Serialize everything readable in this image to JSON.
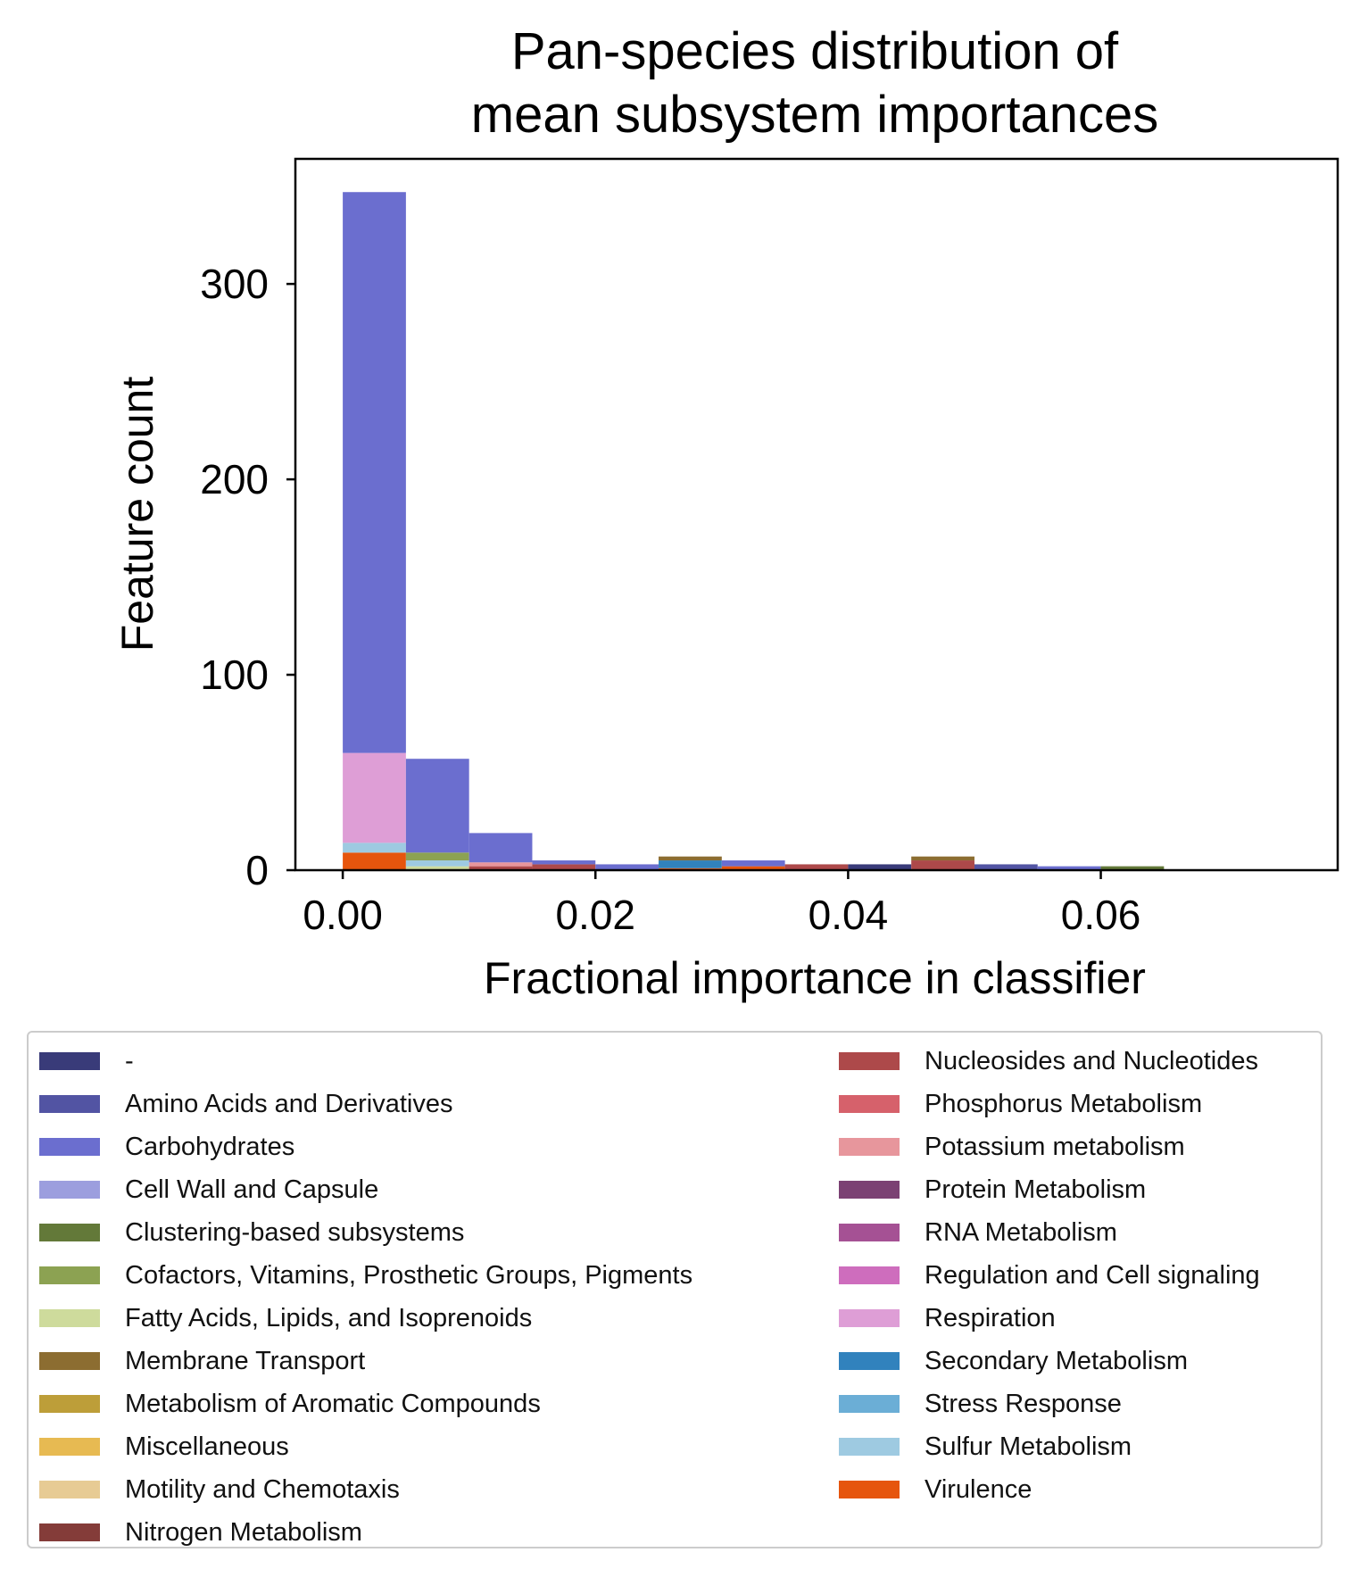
{
  "chart_data": {
    "type": "bar",
    "subtype": "stacked-histogram",
    "title_lines": [
      "Pan-species distribution of",
      "mean subsystem importances"
    ],
    "xlabel": "Fractional importance in classifier",
    "ylabel": "Feature count",
    "xlim": [
      -0.00375,
      0.07875
    ],
    "ylim": [
      0,
      364
    ],
    "xticks": [
      0.0,
      0.02,
      0.04,
      0.06
    ],
    "xtick_labels": [
      "0.00",
      "0.02",
      "0.04",
      "0.06"
    ],
    "yticks": [
      0,
      100,
      200,
      300
    ],
    "ytick_labels": [
      "0",
      "100",
      "200",
      "300"
    ],
    "bin_width": 0.005,
    "grid": false,
    "legend_position": "below",
    "legend_columns": 2,
    "categories": [
      "-",
      "Amino Acids and Derivatives",
      "Carbohydrates",
      "Cell Wall and Capsule",
      "Clustering-based subsystems",
      "Cofactors, Vitamins, Prosthetic Groups, Pigments",
      "Fatty Acids, Lipids, and Isoprenoids",
      "Membrane Transport",
      "Metabolism of Aromatic Compounds",
      "Miscellaneous",
      "Motility and Chemotaxis",
      "Nitrogen Metabolism",
      "Nucleosides and Nucleotides",
      "Phosphorus Metabolism",
      "Potassium metabolism",
      "Protein Metabolism",
      "RNA Metabolism",
      "Regulation and Cell signaling",
      "Respiration",
      "Secondary Metabolism",
      "Stress Response",
      "Sulfur Metabolism",
      "Virulence"
    ],
    "colors": [
      "#393b79",
      "#5254a3",
      "#6b6ecf",
      "#9c9ede",
      "#637939",
      "#8ca252",
      "#cedb9c",
      "#8c6d31",
      "#bd9e39",
      "#e7ba52",
      "#e7cb94",
      "#843c39",
      "#ad494a",
      "#d6616b",
      "#e7969c",
      "#7b4173",
      "#a55194",
      "#ce6dbd",
      "#de9ed6",
      "#3182bd",
      "#6baed6",
      "#9ecae1",
      "#e6550d"
    ],
    "stacks": [
      {
        "bin": [
          0.0,
          0.005
        ],
        "segments": [
          {
            "category": "Virulence",
            "to": 9
          },
          {
            "category": "Sulfur Metabolism",
            "to": 14
          },
          {
            "category": "Respiration",
            "to": 60
          },
          {
            "category": "Carbohydrates",
            "to": 347
          }
        ]
      },
      {
        "bin": [
          0.005,
          0.01
        ],
        "segments": [
          {
            "category": "Fatty Acids, Lipids, and Isoprenoids",
            "to": 2
          },
          {
            "category": "Sulfur Metabolism",
            "to": 5
          },
          {
            "category": "Cofactors, Vitamins, Prosthetic Groups, Pigments",
            "to": 9
          },
          {
            "category": "Carbohydrates",
            "to": 57
          }
        ]
      },
      {
        "bin": [
          0.01,
          0.015
        ],
        "segments": [
          {
            "category": "Nucleosides and Nucleotides",
            "to": 2
          },
          {
            "category": "Potassium metabolism",
            "to": 4
          },
          {
            "category": "Carbohydrates",
            "to": 19
          }
        ]
      },
      {
        "bin": [
          0.015,
          0.02
        ],
        "segments": [
          {
            "category": "Nucleosides and Nucleotides",
            "to": 3
          },
          {
            "category": "Carbohydrates",
            "to": 5
          }
        ]
      },
      {
        "bin": [
          0.02,
          0.025
        ],
        "segments": [
          {
            "category": "Carbohydrates",
            "to": 3
          }
        ]
      },
      {
        "bin": [
          0.025,
          0.03
        ],
        "segments": [
          {
            "category": "Virulence",
            "to": 1
          },
          {
            "category": "Secondary Metabolism",
            "to": 5
          },
          {
            "category": "Membrane Transport",
            "to": 7
          }
        ]
      },
      {
        "bin": [
          0.03,
          0.035
        ],
        "segments": [
          {
            "category": "Virulence",
            "to": 2
          },
          {
            "category": "Carbohydrates",
            "to": 5
          }
        ]
      },
      {
        "bin": [
          0.035,
          0.04
        ],
        "segments": [
          {
            "category": "Nucleosides and Nucleotides",
            "to": 3
          }
        ]
      },
      {
        "bin": [
          0.04,
          0.045
        ],
        "segments": [
          {
            "category": "-",
            "to": 3
          }
        ]
      },
      {
        "bin": [
          0.045,
          0.05
        ],
        "segments": [
          {
            "category": "Nucleosides and Nucleotides",
            "to": 5
          },
          {
            "category": "Membrane Transport",
            "to": 7
          }
        ]
      },
      {
        "bin": [
          0.05,
          0.055
        ],
        "segments": [
          {
            "category": "Amino Acids and Derivatives",
            "to": 3
          }
        ]
      },
      {
        "bin": [
          0.055,
          0.06
        ],
        "segments": [
          {
            "category": "Carbohydrates",
            "to": 2
          }
        ]
      },
      {
        "bin": [
          0.06,
          0.065
        ],
        "segments": [
          {
            "category": "Clustering-based subsystems",
            "to": 2
          }
        ]
      }
    ]
  }
}
